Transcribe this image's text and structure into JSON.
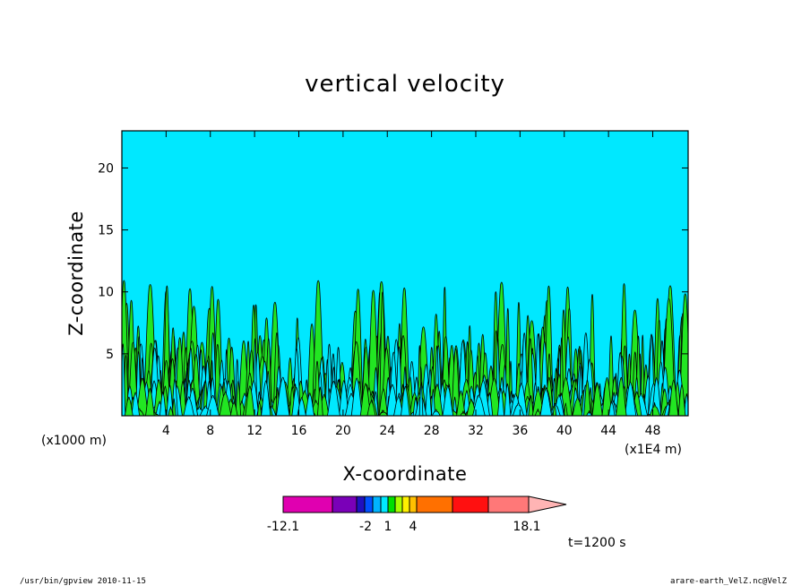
{
  "chart_data": {
    "type": "heatmap",
    "title": "vertical velocity",
    "xlabel": "X-coordinate",
    "ylabel": "Z-coordinate",
    "x_scale_note": "(x1E4 m)",
    "y_scale_note": "(x1000 m)",
    "x_ticks": [
      "4",
      "8",
      "12",
      "16",
      "20",
      "24",
      "28",
      "32",
      "36",
      "40",
      "44",
      "48"
    ],
    "y_ticks": [
      "5",
      "10",
      "15",
      "20"
    ],
    "xlim": [
      0,
      51.2
    ],
    "ylim": [
      0,
      23
    ],
    "colorbar": {
      "colors": [
        "#e000b0",
        "#7a00b8",
        "#2010c0",
        "#0050ff",
        "#00b4ff",
        "#00e8ff",
        "#00e000",
        "#a8ff00",
        "#fff000",
        "#ffc000",
        "#ff7000",
        "#ff1010",
        "#ff7878",
        "#ffb4b4"
      ],
      "labels": [
        "-12.1",
        "-2",
        "1",
        "4",
        "18.1"
      ]
    },
    "background_color": "#00e8ff",
    "plume_color": "#22e622",
    "time_label": "t=1200 s"
  },
  "footer": {
    "left": "/usr/bin/gpview  2010-11-15",
    "right": "arare-earth_VelZ.nc@VelZ"
  }
}
